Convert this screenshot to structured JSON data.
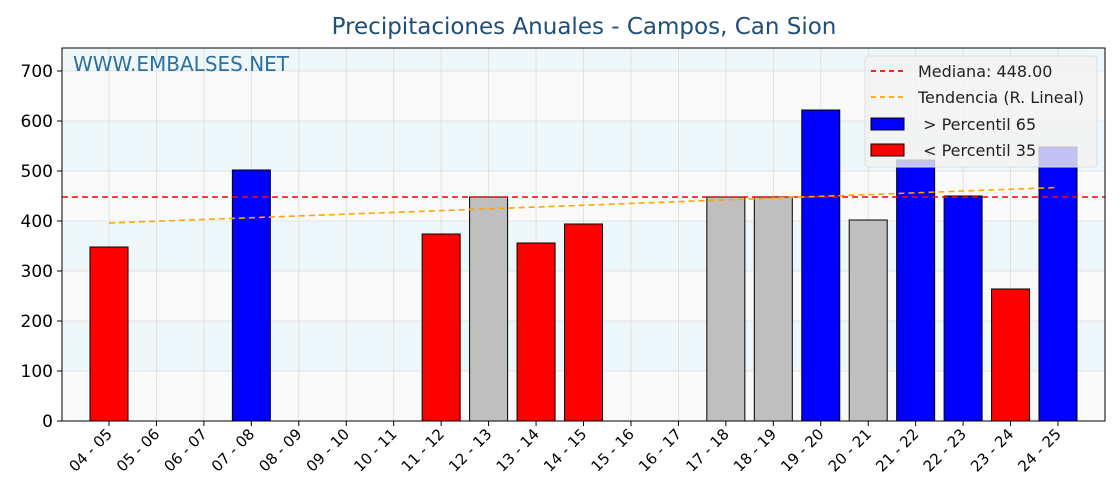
{
  "chart_data": {
    "type": "bar",
    "title": "Precipitaciones Anuales - Campos, Can Sion",
    "watermark": "WWW.EMBALSES.NET",
    "xlabel": "",
    "ylabel": "",
    "ylim": [
      0,
      746
    ],
    "yticks": [
      0,
      100,
      200,
      300,
      400,
      500,
      600,
      700
    ],
    "grid": true,
    "categories": [
      "04 - 05",
      "05 - 06",
      "06 - 07",
      "07 - 08",
      "08 - 09",
      "09 - 10",
      "10 - 11",
      "11 - 12",
      "12 - 13",
      "13 - 14",
      "14 - 15",
      "15 - 16",
      "16 - 17",
      "17 - 18",
      "18 - 19",
      "19 - 20",
      "20 - 21",
      "21 - 22",
      "22 - 23",
      "23 - 24",
      "24 - 25"
    ],
    "values": [
      348,
      0,
      0,
      502,
      0,
      0,
      0,
      374,
      448,
      356,
      394,
      0,
      0,
      448,
      448,
      622,
      402,
      522,
      450,
      264,
      548
    ],
    "bar_class": [
      "low",
      "none",
      "none",
      "high",
      "none",
      "none",
      "none",
      "low",
      "mid",
      "low",
      "low",
      "none",
      "none",
      "mid",
      "mid",
      "high",
      "mid",
      "high",
      "high",
      "low",
      "high"
    ],
    "median": 448.0,
    "trend": {
      "start": 396,
      "end": 467
    },
    "colors": {
      "high": "#0000ff",
      "low": "#ff0000",
      "mid": "#bfbfbf",
      "median": "#ff0000",
      "trend": "#ffa500",
      "title": "#1f4e79"
    },
    "legend": {
      "placement": "top-right",
      "entries": [
        "Mediana: 448.00",
        "Tendencia (R. Lineal)",
        " > Percentil 65",
        " < Percentil 35"
      ]
    }
  }
}
